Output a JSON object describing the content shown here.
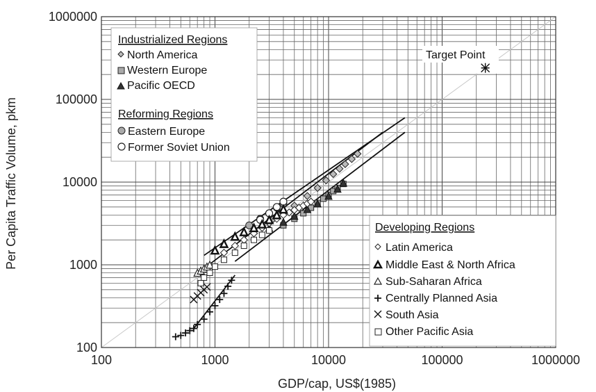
{
  "chart_data": {
    "type": "scatter",
    "title": "",
    "xlabel": "GDP/cap, US$(1985)",
    "ylabel": "Per Capita Traffic Volume, pkm",
    "x_scale": "log",
    "y_scale": "log",
    "xlim": [
      100,
      1000000
    ],
    "ylim": [
      100,
      1000000
    ],
    "grid": true,
    "x_ticks": [
      "100",
      "1000",
      "10000",
      "100000",
      "1000000"
    ],
    "y_ticks": [
      "100",
      "1000",
      "10000",
      "100000",
      "1000000"
    ],
    "legend_groups": [
      {
        "heading": "Industrialized Regions",
        "placement": "top-left",
        "entries": [
          "North America",
          "Western Europe",
          "Pacific OECD"
        ]
      },
      {
        "heading": "Reforming Regions",
        "placement": "top-left",
        "entries": [
          "Eastern Europe",
          "Former Soviet Union"
        ]
      },
      {
        "heading": "Developing Regions",
        "placement": "bottom-right",
        "entries": [
          "Latin America",
          "Middle East & North Africa",
          "Sub-Saharan Africa",
          "Centrally Planned Asia",
          "South Asia",
          "Other Pacific Asia"
        ]
      }
    ],
    "annotations": [
      {
        "text": "Target Point",
        "x": 240000,
        "y": 240000
      }
    ],
    "reference_line": {
      "from": [
        100,
        100
      ],
      "to": [
        1000000,
        1000000
      ],
      "color": "#c8c8c8"
    },
    "series": [
      {
        "name": "North America",
        "marker": "diamond",
        "x": [
          3200,
          4000,
          5000,
          6500,
          8000,
          9500,
          11000,
          12500,
          14000,
          16000,
          18000
        ],
        "y": [
          3500,
          4200,
          5200,
          6800,
          8500,
          10500,
          12500,
          14500,
          16500,
          19000,
          22000
        ]
      },
      {
        "name": "Western Europe",
        "marker": "square-gray",
        "x": [
          4000,
          5000,
          6000,
          7000,
          8000,
          9000,
          10000,
          11000,
          12000,
          13500
        ],
        "y": [
          3000,
          3600,
          4200,
          4900,
          5600,
          6300,
          7000,
          7800,
          8500,
          9500
        ]
      },
      {
        "name": "Pacific OECD",
        "marker": "triangle-filled",
        "x": [
          3000,
          4000,
          5000,
          6500,
          8000,
          10000,
          12000,
          13500
        ],
        "y": [
          2800,
          3300,
          3900,
          4700,
          5500,
          6800,
          8300,
          9800
        ]
      },
      {
        "name": "Eastern Europe",
        "marker": "circle-gray",
        "x": [
          2000,
          2500,
          3000,
          3500,
          4000
        ],
        "y": [
          3000,
          3600,
          4200,
          4900,
          5500
        ]
      },
      {
        "name": "Former Soviet Union",
        "marker": "circle-open",
        "x": [
          2500,
          3000,
          3500,
          4000
        ],
        "y": [
          3500,
          4200,
          5000,
          5800
        ]
      },
      {
        "name": "Latin America",
        "marker": "diamond-open",
        "x": [
          1200,
          1500,
          1800,
          2200,
          2600,
          3000,
          3500,
          4000,
          4500,
          5000,
          5500,
          6000,
          6500,
          7000
        ],
        "y": [
          1400,
          1700,
          2000,
          2400,
          2800,
          3200,
          3600,
          4000,
          4300,
          4600,
          4900,
          5200,
          5500,
          5800
        ]
      },
      {
        "name": "Middle East & North Africa",
        "marker": "triangle-bold",
        "x": [
          1000,
          1200,
          1500,
          1800,
          2200,
          2600,
          3000,
          3500,
          4000
        ],
        "y": [
          1500,
          1800,
          2200,
          2500,
          2800,
          3100,
          3500,
          4000,
          4700
        ]
      },
      {
        "name": "Sub-Saharan Africa",
        "marker": "triangle-open",
        "x": [
          700,
          750,
          800,
          850,
          900
        ],
        "y": [
          800,
          850,
          900,
          950,
          1000
        ]
      },
      {
        "name": "Centrally Planned Asia",
        "marker": "plus",
        "x": [
          450,
          500,
          550,
          600,
          650,
          700,
          800,
          900,
          1000,
          1100,
          1200,
          1300,
          1400
        ],
        "y": [
          135,
          140,
          150,
          160,
          170,
          190,
          220,
          270,
          320,
          380,
          450,
          550,
          650
        ]
      },
      {
        "name": "South Asia",
        "marker": "cross",
        "x": [
          650,
          700,
          750,
          800,
          850
        ],
        "y": [
          380,
          420,
          460,
          500,
          540
        ]
      },
      {
        "name": "Other Pacific Asia",
        "marker": "square-open",
        "x": [
          750,
          800,
          900,
          1000,
          1200,
          1500,
          1800,
          2200,
          2600,
          3000
        ],
        "y": [
          600,
          700,
          800,
          950,
          1150,
          1400,
          1700,
          2000,
          2300,
          2600
        ]
      }
    ],
    "trend_lines": [
      {
        "from": [
          800,
          1300
        ],
        "to": [
          47000,
          60000
        ]
      },
      {
        "from": [
          800,
          900
        ],
        "to": [
          30000,
          40000
        ]
      },
      {
        "from": [
          650,
          170
        ],
        "to": [
          1500,
          750
        ]
      },
      {
        "from": [
          1500,
          1100
        ],
        "to": [
          47000,
          40000
        ]
      }
    ]
  }
}
